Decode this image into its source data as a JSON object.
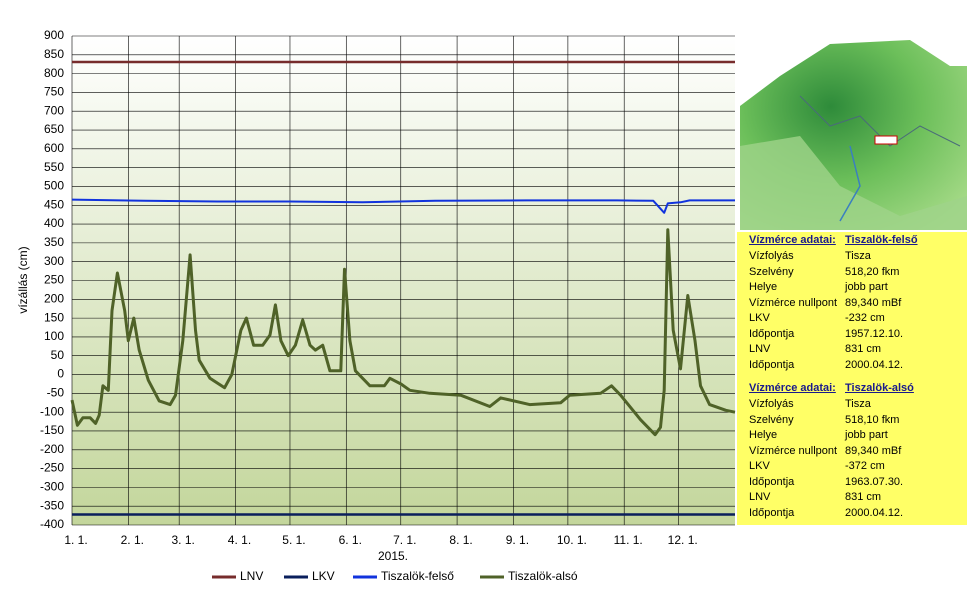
{
  "chart_data": {
    "type": "line",
    "y_label": "vízállás (cm)",
    "x_label": "2015.",
    "xlim": [
      0,
      365
    ],
    "xticks": [
      {
        "value": 0,
        "label": "1. 1."
      },
      {
        "value": 31,
        "label": "2. 1."
      },
      {
        "value": 59,
        "label": "3. 1."
      },
      {
        "value": 90,
        "label": "4. 1."
      },
      {
        "value": 120,
        "label": "5. 1."
      },
      {
        "value": 151,
        "label": "6. 1."
      },
      {
        "value": 181,
        "label": "7. 1."
      },
      {
        "value": 212,
        "label": "8. 1."
      },
      {
        "value": 243,
        "label": "9. 1."
      },
      {
        "value": 273,
        "label": "10. 1."
      },
      {
        "value": 304,
        "label": "11. 1."
      },
      {
        "value": 334,
        "label": "12. 1."
      }
    ],
    "ylim": [
      -400,
      900
    ],
    "yticks": [
      900,
      850,
      800,
      750,
      700,
      650,
      600,
      550,
      500,
      450,
      400,
      350,
      300,
      250,
      200,
      150,
      100,
      50,
      0,
      -50,
      -100,
      -150,
      -200,
      -250,
      -300,
      -350,
      -400
    ],
    "grid": true,
    "legend": "bottom",
    "series": [
      {
        "name": "LNV",
        "color": "#772c2c",
        "x": [
          0,
          365
        ],
        "values": [
          831,
          831
        ]
      },
      {
        "name": "LKV",
        "color": "#0a1f5c",
        "x": [
          0,
          365
        ],
        "values": [
          -372,
          -372
        ]
      },
      {
        "name": "Tiszalök-felső",
        "color": "#1133dd",
        "x": [
          0,
          40,
          80,
          120,
          160,
          200,
          250,
          300,
          320,
          326,
          328,
          335,
          340,
          365
        ],
        "values": [
          465,
          462,
          460,
          460,
          458,
          462,
          463,
          463,
          462,
          430,
          455,
          458,
          463,
          463
        ]
      },
      {
        "name": "Tiszalök-alsó",
        "color": "#4f6228",
        "x": [
          0,
          3,
          6,
          10,
          13,
          15,
          17,
          20,
          22,
          25,
          29,
          31,
          34,
          37,
          42,
          48,
          54,
          57,
          61,
          65,
          68,
          70,
          76,
          84,
          88,
          93,
          96,
          100,
          105,
          109,
          112,
          115,
          119,
          123,
          127,
          131,
          134,
          138,
          142,
          148,
          150,
          153,
          156,
          164,
          172,
          175,
          181,
          186,
          197,
          214,
          230,
          236,
          252,
          269,
          274,
          291,
          297,
          302,
          313,
          321,
          324,
          326,
          328,
          331,
          335,
          339,
          343,
          346,
          351,
          360,
          365
        ],
        "values": [
          -68,
          -135,
          -115,
          -115,
          -130,
          -108,
          -30,
          -42,
          170,
          270,
          170,
          90,
          150,
          65,
          -15,
          -70,
          -80,
          -55,
          90,
          318,
          118,
          38,
          -10,
          -35,
          0,
          118,
          150,
          78,
          78,
          105,
          185,
          90,
          50,
          78,
          145,
          78,
          65,
          78,
          10,
          10,
          280,
          90,
          10,
          -30,
          -30,
          -10,
          -25,
          -42,
          -50,
          -55,
          -85,
          -62,
          -80,
          -75,
          -55,
          -50,
          -30,
          -55,
          -120,
          -160,
          -140,
          -42,
          385,
          118,
          15,
          210,
          90,
          -30,
          -80,
          -95,
          -100
        ]
      }
    ]
  },
  "info_panels": [
    {
      "title": "Vízmérce adatai:",
      "name": "Tiszalök-felső",
      "rows": [
        [
          "Vízfolyás",
          "Tisza"
        ],
        [
          "Szelvény",
          "518,20 fkm"
        ],
        [
          "Helye",
          "jobb part"
        ],
        [
          "Vízmérce nullpont",
          "89,340 mBf"
        ],
        [
          "LKV",
          "-232 cm"
        ],
        [
          "Időpontja",
          "1957.12.10."
        ],
        [
          "LNV",
          "831 cm"
        ],
        [
          "Időpontja",
          "2000.04.12."
        ]
      ]
    },
    {
      "title": "Vízmérce adatai:",
      "name": "Tiszalök-alsó",
      "rows": [
        [
          "Vízfolyás",
          "Tisza"
        ],
        [
          "Szelvény",
          "518,10 fkm"
        ],
        [
          "Helye",
          "jobb part"
        ],
        [
          "Vízmérce nullpont",
          "89,340 mBf"
        ],
        [
          "LKV",
          "-372 cm"
        ],
        [
          "Időpontja",
          "1963.07.30."
        ],
        [
          "LNV",
          "831 cm"
        ],
        [
          "Időpontja",
          "2000.04.12."
        ]
      ]
    }
  ]
}
